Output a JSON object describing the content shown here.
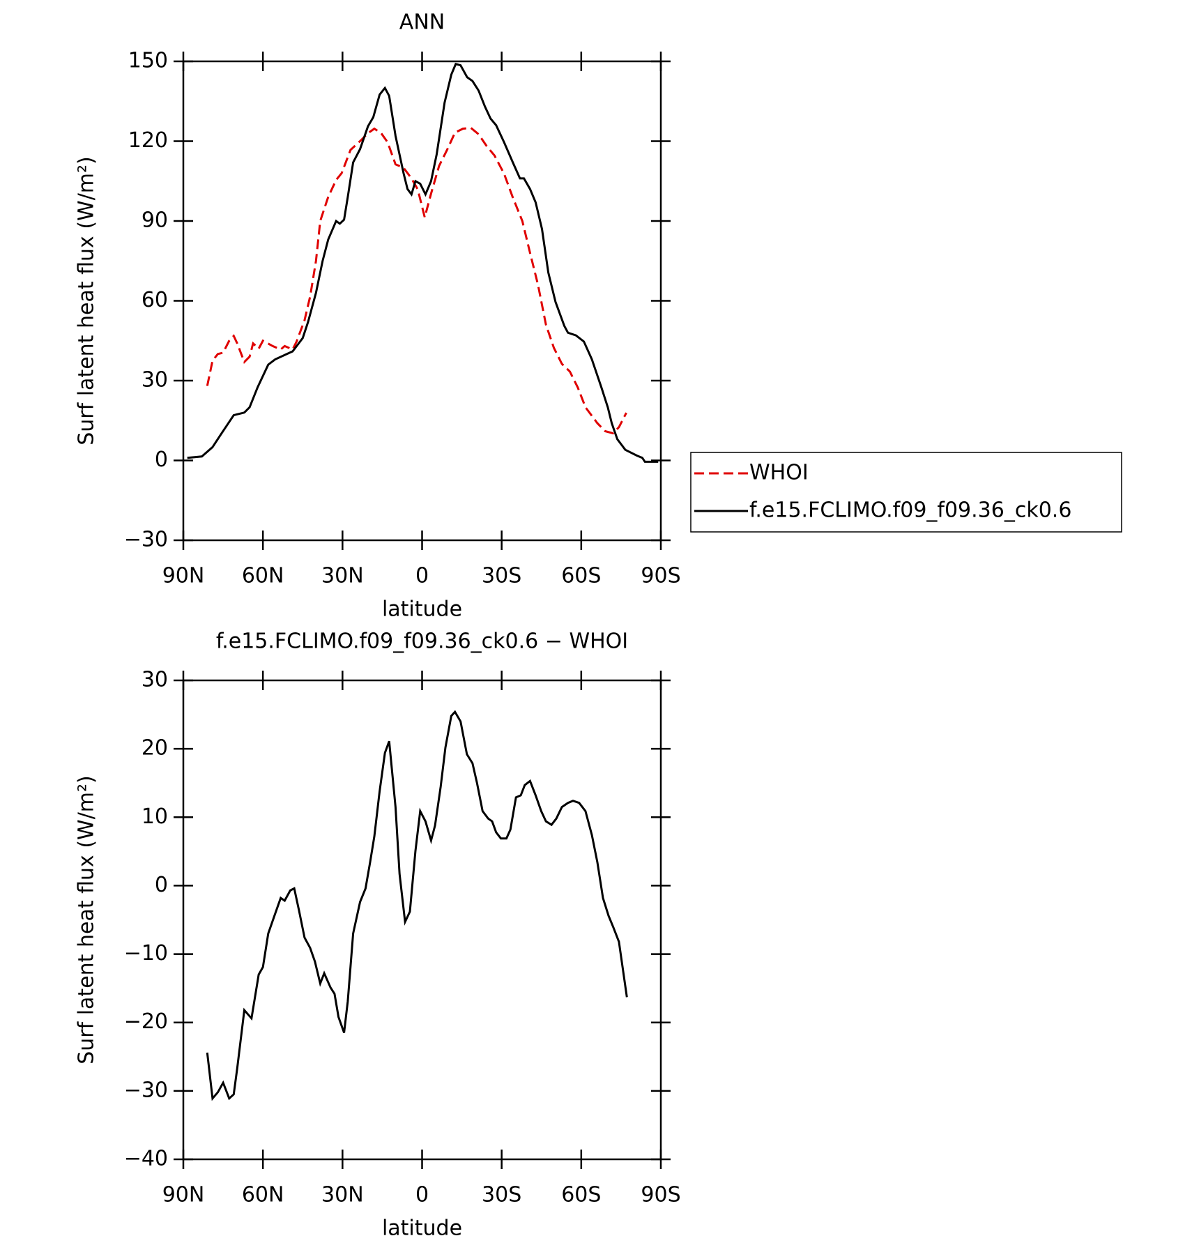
{
  "chart_data": [
    {
      "type": "line",
      "title": "ANN",
      "x_label": "latitude",
      "y_label": "Surf latent heat flux (W/m²)",
      "xlim": [
        90,
        -90
      ],
      "ylim": [
        -30,
        150
      ],
      "xticks": [
        {
          "value": 90,
          "label": "90N"
        },
        {
          "value": 60,
          "label": "60N"
        },
        {
          "value": 30,
          "label": "30N"
        },
        0,
        {
          "value": -30,
          "label": "30S"
        },
        {
          "value": -60,
          "label": "60S"
        },
        {
          "value": -90,
          "label": "90S"
        }
      ],
      "yticks": [
        {
          "value": -30,
          "label": "−30"
        },
        0,
        30,
        60,
        90,
        120,
        150
      ],
      "legend": "right-outside",
      "series": [
        {
          "name": "WHOI",
          "color": "#e00000",
          "line_style": "dashed",
          "x": [
            81,
            79,
            77,
            75,
            72.7,
            71,
            69.7,
            67,
            65,
            63.7,
            61.6,
            60,
            56.3,
            53.3,
            51.8,
            48.8,
            47.3,
            44.3,
            42.2,
            40,
            38.4,
            35.4,
            32.4,
            30.3,
            27,
            23.4,
            20.4,
            18,
            15.4,
            13,
            10,
            7,
            4,
            1.6,
            -1,
            -3.4,
            -6.4,
            -9.4,
            -12.4,
            -15.4,
            -18.4,
            -21.3,
            -24.3,
            -27.3,
            -30.9,
            -34.2,
            -37.8,
            -40.7,
            -43.7,
            -46.7,
            -49.7,
            -52.7,
            -55.7,
            -58.7,
            -61.6,
            -66.1,
            -69,
            -72,
            -74.2,
            -77
          ],
          "values": [
            28,
            37.5,
            40,
            40.5,
            45,
            46.8,
            44,
            37,
            39,
            44,
            42,
            45,
            43,
            41.7,
            43,
            41.7,
            44.7,
            52.7,
            61.6,
            75,
            90,
            99,
            105.4,
            108,
            116.7,
            120,
            123,
            124.7,
            123,
            119.6,
            111.3,
            110,
            106,
            101.8,
            91.4,
            100.3,
            110.7,
            116.7,
            123.2,
            124.7,
            125,
            122.6,
            118.2,
            114.6,
            107.8,
            98.8,
            90,
            78,
            66,
            51,
            42.3,
            36.3,
            33.4,
            27.4,
            20,
            14,
            11,
            10.2,
            12.5,
            17.9
          ]
        },
        {
          "name": "f.e15.FCLIMO.f09_f09.36_ck0.6",
          "color": "#000000",
          "line_style": "solid",
          "x": [
            88.5,
            83,
            79,
            75.7,
            71,
            67,
            65,
            62,
            58,
            55.4,
            48.8,
            45,
            43,
            40,
            37.5,
            35.4,
            32.4,
            31,
            29.4,
            28,
            26,
            23.4,
            20.4,
            18.4,
            16,
            14,
            12.4,
            10,
            7,
            5.5,
            4,
            2.5,
            0.7,
            -1.3,
            -3.4,
            -5.5,
            -8.5,
            -11,
            -12.7,
            -14.5,
            -17,
            -19,
            -21.3,
            -23.7,
            -25.8,
            -27.9,
            -30.9,
            -34.2,
            -36.9,
            -38.4,
            -40.7,
            -42.8,
            -45.2,
            -47.6,
            -50.3,
            -53.6,
            -55,
            -58,
            -61,
            -64,
            -67.6,
            -70,
            -71.5,
            -73.6,
            -76.6,
            -81,
            -83,
            -84,
            -87,
            -89
          ],
          "values": [
            1,
            1.5,
            5,
            10,
            17,
            18,
            20,
            27.5,
            36,
            38,
            41,
            46,
            52,
            63,
            75,
            83,
            90,
            89,
            90.5,
            99,
            112,
            117,
            125.6,
            129,
            137.5,
            140,
            137,
            122,
            108,
            102,
            100,
            105,
            104,
            100,
            105,
            115,
            134.5,
            145,
            149,
            148.5,
            144,
            142.6,
            139,
            133,
            128.5,
            126,
            119.6,
            112,
            106,
            106,
            102,
            97,
            87,
            70.6,
            59.6,
            50.6,
            48,
            47,
            44.7,
            38,
            27.4,
            20,
            14,
            8,
            4,
            1.8,
            1,
            -0.5,
            -0.5,
            -0.5
          ]
        }
      ]
    },
    {
      "type": "line",
      "title": "f.e15.FCLIMO.f09_f09.36_ck0.6 − WHOI",
      "x_label": "latitude",
      "y_label": "Surf latent heat flux (W/m²)",
      "xlim": [
        90,
        -90
      ],
      "ylim": [
        -40,
        30
      ],
      "xticks": [
        {
          "value": 90,
          "label": "90N"
        },
        {
          "value": 60,
          "label": "60N"
        },
        {
          "value": 30,
          "label": "30N"
        },
        0,
        {
          "value": -30,
          "label": "30S"
        },
        {
          "value": -60,
          "label": "60S"
        },
        {
          "value": -90,
          "label": "90S"
        }
      ],
      "yticks": [
        {
          "value": -40,
          "label": "−40"
        },
        {
          "value": -30,
          "label": "−30"
        },
        {
          "value": -20,
          "label": "−20"
        },
        {
          "value": -10,
          "label": "−10"
        },
        0,
        10,
        20,
        30
      ],
      "series": [
        {
          "color": "#000000",
          "line_style": "solid",
          "x": [
            81,
            79,
            77,
            75,
            72.7,
            71,
            69.7,
            67,
            64.3,
            61.6,
            60,
            58,
            55.4,
            53.3,
            51.8,
            49.7,
            48.2,
            46.4,
            44.3,
            42.2,
            40.4,
            38.4,
            36.9,
            34.5,
            33,
            31.5,
            29.4,
            28,
            26,
            23.4,
            21.3,
            19.6,
            18,
            16,
            14,
            12.4,
            10,
            8.5,
            6.4,
            4.6,
            2.5,
            0.7,
            -1.3,
            -3.4,
            -4.9,
            -7,
            -8.8,
            -11,
            -12.4,
            -14.5,
            -16.9,
            -19,
            -20.7,
            -22.8,
            -24.9,
            -26.4,
            -27.9,
            -29.7,
            -31.8,
            -33.3,
            -35.4,
            -37.2,
            -38.7,
            -40.7,
            -42.8,
            -44.9,
            -46.7,
            -48.8,
            -50.6,
            -52.7,
            -55,
            -56.9,
            -59.2,
            -61.6,
            -64,
            -66.1,
            -68.2,
            -70.3,
            -72.1,
            -74.2,
            -77.2
          ],
          "values": [
            -24.4,
            -31.1,
            -30.2,
            -28.8,
            -31.1,
            -30.5,
            -26.7,
            -18.2,
            -19.4,
            -13,
            -11.9,
            -7,
            -4.1,
            -1.8,
            -2.2,
            -0.7,
            -0.4,
            -3.6,
            -7.6,
            -9.1,
            -11.1,
            -14.3,
            -12.8,
            -14.9,
            -15.8,
            -19.2,
            -21.5,
            -16.9,
            -7,
            -2.4,
            -0.4,
            3.4,
            7.2,
            13.8,
            19.4,
            21.1,
            11.5,
            1.7,
            -5.3,
            -3.8,
            5.1,
            10.9,
            9.4,
            6.6,
            8.8,
            14.4,
            20.2,
            24.8,
            25.4,
            24,
            19.2,
            17.9,
            15,
            10.9,
            9.8,
            9.4,
            7.8,
            6.9,
            6.9,
            8.2,
            12.9,
            13.2,
            14.7,
            15.3,
            13.2,
            10.9,
            9.4,
            8.9,
            9.8,
            11.5,
            12.1,
            12.4,
            12.1,
            10.9,
            7.4,
            3.4,
            -1.8,
            -4.4,
            -6.1,
            -8.2,
            -16.3
          ]
        }
      ]
    }
  ]
}
